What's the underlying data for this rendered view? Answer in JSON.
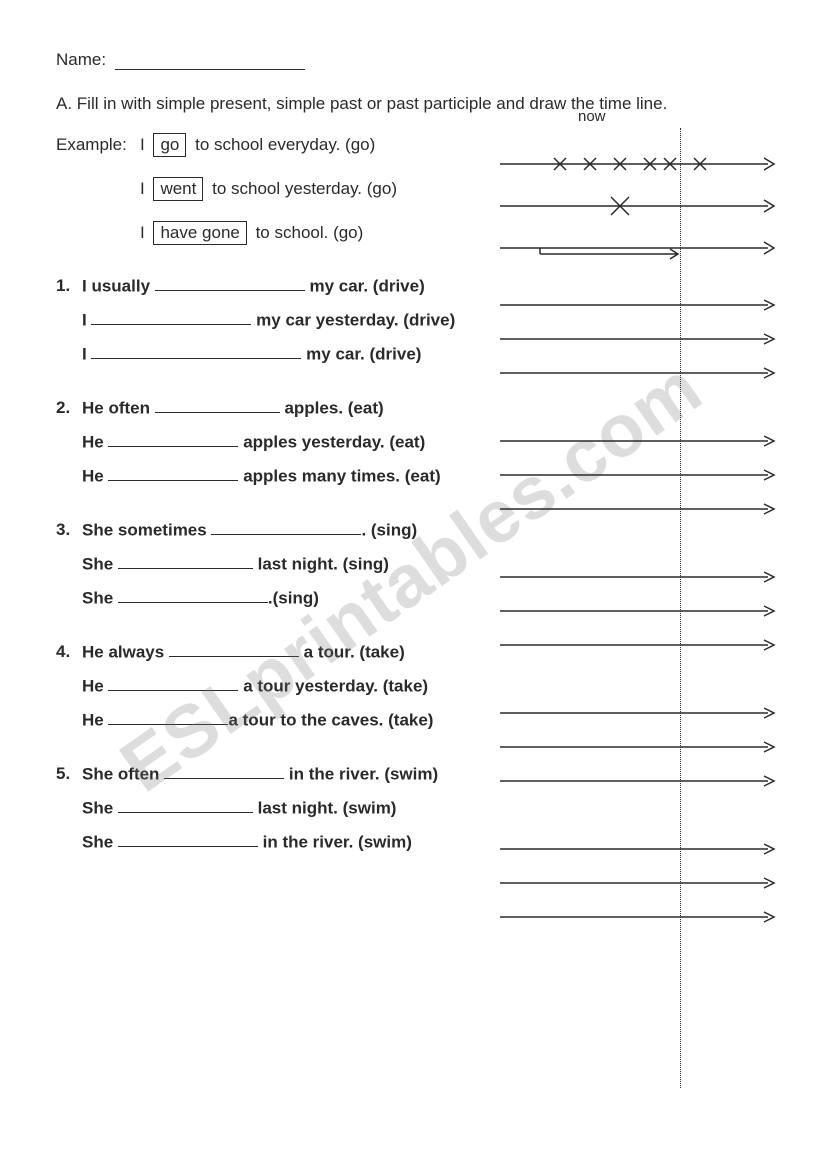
{
  "watermark_text": "ESLprintables.com",
  "name_label": "Name:",
  "instructions": "A. Fill in with simple present, simple past or past participle and draw the time line.",
  "now_label": "now",
  "example_label": "Example:",
  "examples": [
    {
      "pre": "I ",
      "boxed": "go",
      "post": " to school everyday. (go)",
      "timeline": "xxxxx"
    },
    {
      "pre": "I ",
      "boxed": "went",
      "post": " to school yesterday. (go)",
      "timeline": "oneX"
    },
    {
      "pre": "I ",
      "boxed": "have gone",
      "post": " to school. (go)",
      "timeline": "perfect"
    }
  ],
  "questions": [
    {
      "num": "1.",
      "lines": [
        {
          "pre": "I usually ",
          "blank_w": 150,
          "post": " my car. (drive)"
        },
        {
          "pre": "I ",
          "blank_w": 160,
          "post": " my car yesterday. (drive)"
        },
        {
          "pre": "I ",
          "blank_w": 210,
          "post": " my car. (drive)"
        }
      ]
    },
    {
      "num": "2.",
      "lines": [
        {
          "pre": "He often ",
          "blank_w": 125,
          "post": " apples. (eat)"
        },
        {
          "pre": "He ",
          "blank_w": 130,
          "post": " apples yesterday. (eat)"
        },
        {
          "pre": "He ",
          "blank_w": 130,
          "post": " apples many times. (eat)"
        }
      ]
    },
    {
      "num": "3.",
      "lines": [
        {
          "pre": "She sometimes ",
          "blank_w": 150,
          "post": ". (sing)"
        },
        {
          "pre": "She ",
          "blank_w": 135,
          "post": " last night. (sing)"
        },
        {
          "pre": "She ",
          "blank_w": 150,
          "post": ".(sing)"
        }
      ]
    },
    {
      "num": "4.",
      "lines": [
        {
          "pre": "He always ",
          "blank_w": 130,
          "post": " a tour. (take)"
        },
        {
          "pre": "He ",
          "blank_w": 130,
          "post": " a tour yesterday. (take)"
        },
        {
          "pre": "He ",
          "blank_w": 120,
          "post": "a tour to the caves. (take)"
        }
      ]
    },
    {
      "num": "5.",
      "lines": [
        {
          "pre": "She often ",
          "blank_w": 120,
          "post": " in the river. (swim)"
        },
        {
          "pre": "She ",
          "blank_w": 135,
          "post": " last night. (swim)"
        },
        {
          "pre": "She ",
          "blank_w": 140,
          "post": " in the river. (swim)"
        }
      ]
    }
  ],
  "timeline_top_offsets_ex": [
    24,
    66,
    108
  ],
  "timeline_top_offsets_q": [
    [
      170,
      204,
      238
    ],
    [
      306,
      340,
      374
    ],
    [
      442,
      476,
      510
    ],
    [
      578,
      612,
      646
    ],
    [
      714,
      748,
      782
    ]
  ],
  "colors": {
    "text": "#2a2a2a",
    "arrow": "#2a2a2a"
  }
}
